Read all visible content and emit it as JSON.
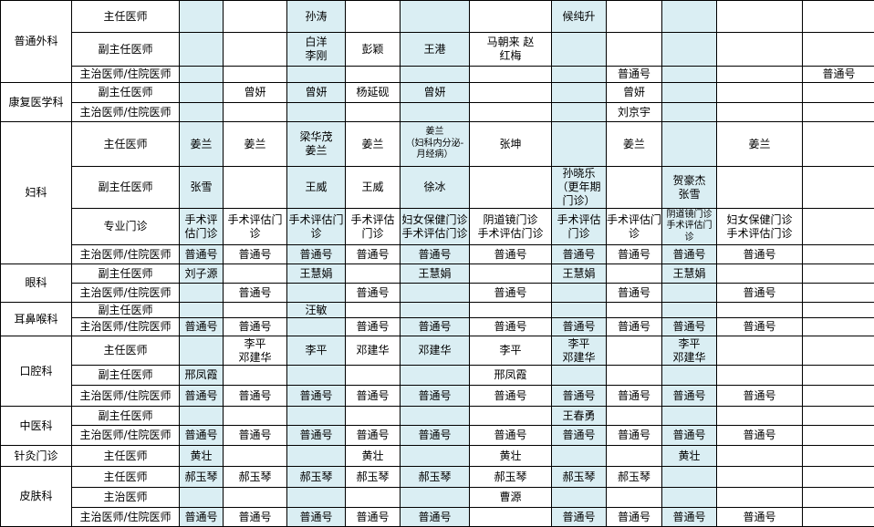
{
  "colors": {
    "highlight_column": "#daeef3",
    "grid_line": "#000000",
    "background": "#ffffff",
    "text": "#000000"
  },
  "schedule": {
    "sections": [
      {
        "department": "普通外科",
        "rows": [
          {
            "title": "主任医师",
            "cells": [
              "",
              "",
              "孙涛",
              "",
              "",
              "",
              "候纯升",
              "",
              "",
              "",
              ""
            ]
          },
          {
            "title": "副主任医师",
            "cells": [
              "",
              "",
              "白洋\n李刚",
              "彭颖",
              "王港",
              "马朝来 赵\n红梅",
              "",
              "",
              "",
              "",
              ""
            ]
          },
          {
            "title": "主治医师/住院医师",
            "cells": [
              "",
              "",
              "",
              "",
              "",
              "",
              "",
              "普通号",
              "",
              "",
              "普通号"
            ]
          }
        ]
      },
      {
        "department": "康复医学科",
        "rows": [
          {
            "title": "副主任医师",
            "cells": [
              "",
              "曾妍",
              "曾妍",
              "杨延砚",
              "曾妍",
              "",
              "",
              "曾妍",
              "",
              "",
              ""
            ]
          },
          {
            "title": "主治医师/住院医师",
            "cells": [
              "",
              "",
              "",
              "",
              "",
              "",
              "",
              "刘京宇",
              "",
              "",
              ""
            ]
          }
        ]
      },
      {
        "department": "妇科",
        "rows": [
          {
            "title": "主任医师",
            "cells": [
              "姜兰",
              "姜兰",
              "梁华茂\n姜兰",
              "姜兰",
              "姜兰\n（妇科内分泌-\n月经病）",
              "张坤",
              "",
              "姜兰",
              "",
              "姜兰",
              ""
            ]
          },
          {
            "title": "副主任医师",
            "cells": [
              "张雪",
              "",
              "王威",
              "王威",
              "徐冰",
              "",
              "孙晓乐\n（更年期门诊）",
              "",
              "贺豪杰\n张雪",
              "",
              ""
            ]
          },
          {
            "title": "专业门诊",
            "cells": [
              "手术评估门诊",
              "手术评估门诊",
              "手术评估门诊",
              "手术评估门诊",
              "妇女保健门诊\n手术评估门诊",
              "阴道镜门诊\n手术评估门诊",
              "手术评估门诊",
              "手术评估门诊",
              "阴道镜门诊\n手术评估门诊",
              "妇女保健门诊\n手术评估门诊",
              ""
            ]
          },
          {
            "title": "主治医师/住院医师",
            "cells": [
              "普通号",
              "普通号",
              "普通号",
              "普通号",
              "普通号",
              "普通号",
              "普通号",
              "普通号",
              "普通号",
              "普通号",
              ""
            ]
          }
        ]
      },
      {
        "department": "眼科",
        "rows": [
          {
            "title": "副主任医师",
            "cells": [
              "刘子源",
              "",
              "王慧娟",
              "",
              "王慧娟",
              "",
              "王慧娟",
              "",
              "王慧娟",
              "",
              ""
            ]
          },
          {
            "title": "主治医师/住院医师",
            "cells": [
              "",
              "普通号",
              "",
              "普通号",
              "",
              "普通号",
              "",
              "普通号",
              "",
              "普通号",
              ""
            ]
          }
        ]
      },
      {
        "department": "耳鼻喉科",
        "rows": [
          {
            "title": "副主任医师",
            "cells": [
              "",
              "",
              "汪敏",
              "",
              "",
              "",
              "",
              "",
              "",
              "",
              ""
            ]
          },
          {
            "title": "主治医师/住院医师",
            "cells": [
              "普通号",
              "普通号",
              "",
              "普通号",
              "普通号",
              "普通号",
              "普通号",
              "普通号",
              "普通号",
              "普通号",
              ""
            ]
          }
        ]
      },
      {
        "department": "口腔科",
        "rows": [
          {
            "title": "主任医师",
            "cells": [
              "",
              "李平\n邓建华",
              "李平",
              "邓建华",
              "邓建华",
              "李平",
              "李平\n邓建华",
              "",
              "李平\n邓建华",
              "",
              ""
            ]
          },
          {
            "title": "副主任医师",
            "cells": [
              "邢凤霞",
              "",
              "",
              "",
              "",
              "邢凤霞",
              "",
              "",
              "",
              "",
              ""
            ]
          },
          {
            "title": "主治医师/住院医师",
            "cells": [
              "普通号",
              "普通号",
              "普通号",
              "普通号",
              "普通号",
              "普通号",
              "普通号",
              "普通号",
              "普通号",
              "普通号",
              ""
            ]
          }
        ]
      },
      {
        "department": "中医科",
        "rows": [
          {
            "title": "副主任医师",
            "cells": [
              "",
              "",
              "",
              "",
              "",
              "",
              "王春勇",
              "",
              "",
              "",
              ""
            ]
          },
          {
            "title": "主治医师/住院医师",
            "cells": [
              "普通号",
              "普通号",
              "普通号",
              "普通号",
              "普通号",
              "普通号",
              "普通号",
              "普通号",
              "普通号",
              "普通号",
              ""
            ]
          }
        ]
      },
      {
        "department": "针灸门诊",
        "rows": [
          {
            "title": "主任医师",
            "cells": [
              "黄壮",
              "",
              "",
              "黄壮",
              "",
              "黄壮",
              "",
              "",
              "黄壮",
              "",
              ""
            ]
          }
        ]
      },
      {
        "department": "皮肤科",
        "rows": [
          {
            "title": "主任医师",
            "cells": [
              "郝玉琴",
              "郝玉琴",
              "郝玉琴",
              "郝玉琴",
              "郝玉琴",
              "郝玉琴",
              "郝玉琴",
              "郝玉琴",
              "",
              "",
              ""
            ]
          },
          {
            "title": "主治医师",
            "cells": [
              "",
              "",
              "",
              "",
              "",
              "曹源",
              "",
              "",
              "",
              "",
              ""
            ]
          },
          {
            "title": "主治医师/住院医师",
            "cells": [
              "普通号",
              "普通号",
              "普通号",
              "普通号",
              "普通号",
              "",
              "普通号",
              "普通号",
              "普通号",
              "普通号",
              ""
            ]
          }
        ]
      }
    ]
  }
}
